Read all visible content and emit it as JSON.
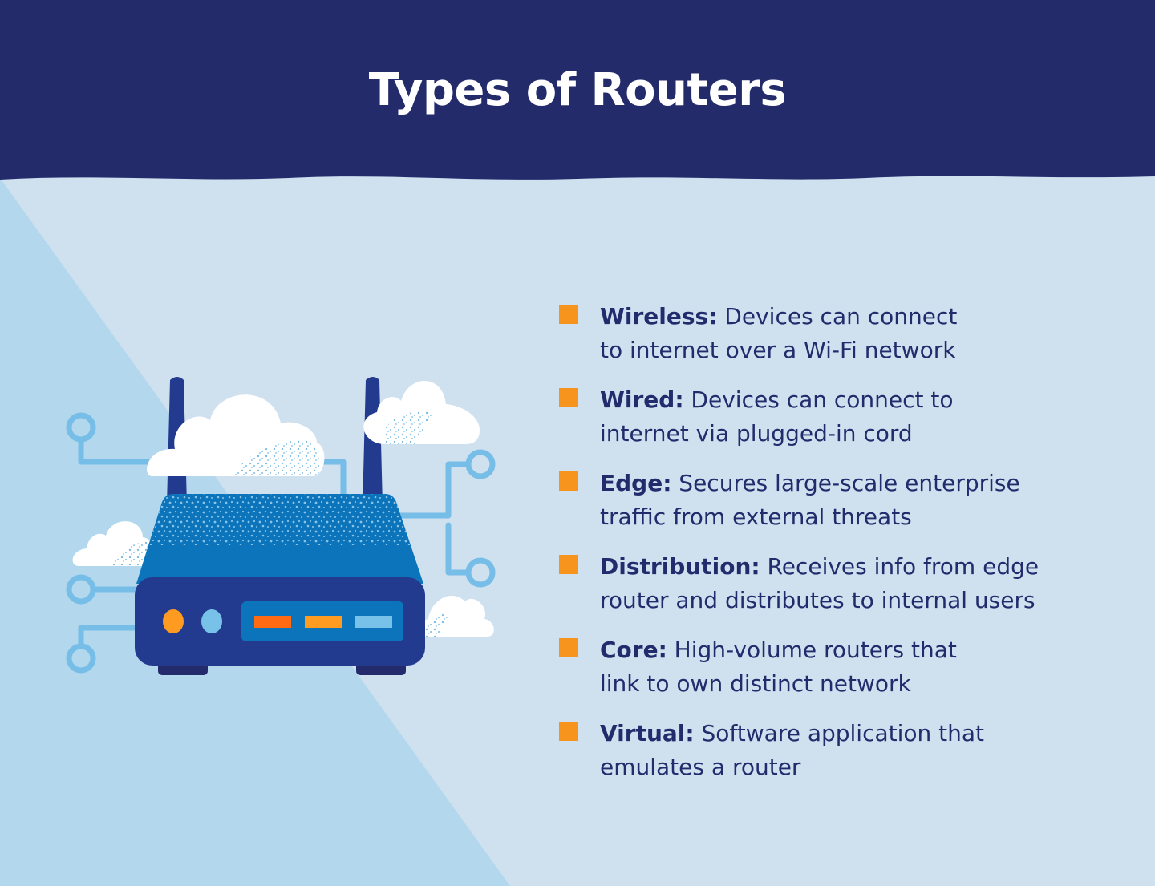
{
  "title": "Types of Routers",
  "colors": {
    "header": "#242b6b",
    "background": "#cfe0ef",
    "triangle": "#b3d7ec",
    "bullet": "#f7941d",
    "text": "#232b6c",
    "router_body": "#233b8e",
    "router_top": "#0c74bb",
    "circuit": "#76bde7",
    "port_orange": "#ff6a13",
    "port_amber": "#ff9b21",
    "port_light": "#78c1e9"
  },
  "illustration": {
    "icons": [
      "router-icon",
      "antenna-icon",
      "cloud-icon",
      "circuit-trace-icon"
    ]
  },
  "types": [
    {
      "name": "Wireless:",
      "line1": " Devices can connect",
      "line2": "to internet over a Wi-Fi network"
    },
    {
      "name": "Wired:",
      "line1": " Devices can connect to",
      "line2": "internet via plugged-in cord"
    },
    {
      "name": "Edge:",
      "line1": " Secures large-scale enterprise",
      "line2": "traffic from external threats"
    },
    {
      "name": "Distribution:",
      "line1": " Receives info from edge",
      "line2": "router and distributes to internal users"
    },
    {
      "name": "Core:",
      "line1": " High-volume routers that",
      "line2": "link to own distinct network"
    },
    {
      "name": "Virtual:",
      "line1": " Software application that",
      "line2": "emulates a router"
    }
  ]
}
